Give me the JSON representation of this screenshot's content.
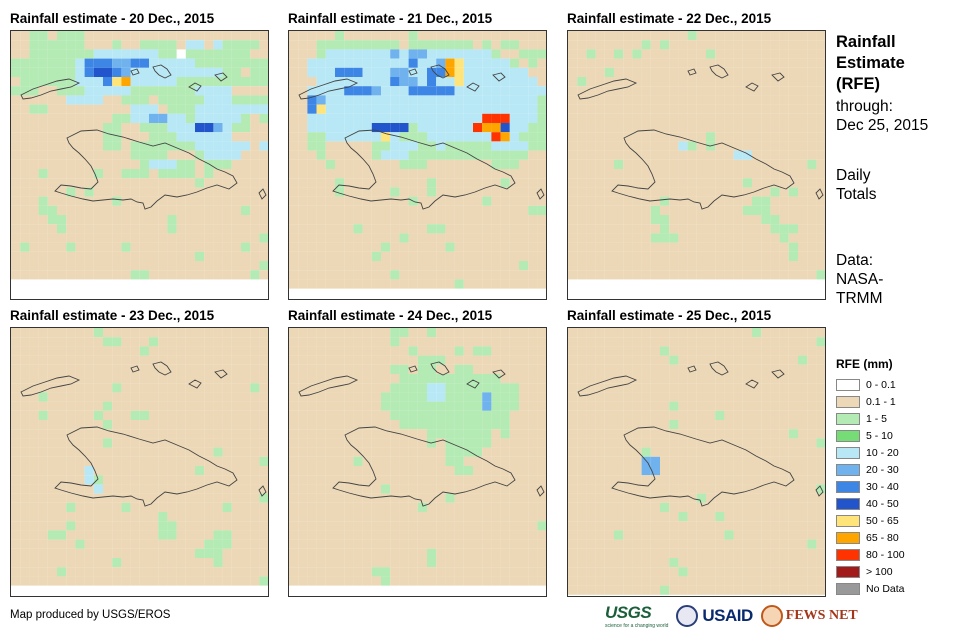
{
  "panels": [
    {
      "title": "Rainfall estimate - 20 Dec., 2015",
      "day": "20"
    },
    {
      "title": "Rainfall estimate - 21 Dec., 2015",
      "day": "21"
    },
    {
      "title": "Rainfall estimate - 22 Dec., 2015",
      "day": "22"
    },
    {
      "title": "Rainfall estimate - 23 Dec., 2015",
      "day": "23"
    },
    {
      "title": "Rainfall estimate - 24 Dec., 2015",
      "day": "24"
    },
    {
      "title": "Rainfall estimate - 25 Dec., 2015",
      "day": "25"
    }
  ],
  "sidebar": {
    "title_line1": "Rainfall",
    "title_line2": "Estimate",
    "title_line3": "(RFE)",
    "through_label": "through:",
    "through_date": "Dec 25, 2015",
    "totals_line1": "Daily",
    "totals_line2": "Totals",
    "data_line1": "Data:",
    "data_line2": "NASA-",
    "data_line3": "TRMM"
  },
  "legend": {
    "title": "RFE (mm)",
    "items": [
      {
        "label": "0 - 0.1",
        "color": "#ffffff"
      },
      {
        "label": "0.1 - 1",
        "color": "#ecd8b6"
      },
      {
        "label": "1 - 5",
        "color": "#b4eab4"
      },
      {
        "label": "5 - 10",
        "color": "#76dc76"
      },
      {
        "label": "10 - 20",
        "color": "#b8e8f6"
      },
      {
        "label": "20 - 30",
        "color": "#6fb2ee"
      },
      {
        "label": "30 - 40",
        "color": "#3d86e6"
      },
      {
        "label": "40 - 50",
        "color": "#2255cc"
      },
      {
        "label": "50 - 65",
        "color": "#ffe47a"
      },
      {
        "label": "65 - 80",
        "color": "#ffa500"
      },
      {
        "label": "80 - 100",
        "color": "#ff3300"
      },
      {
        "label": "> 100",
        "color": "#a31a1a"
      },
      {
        "label": "No Data",
        "color": "#999999"
      }
    ]
  },
  "footer": {
    "credit": "Map produced by USGS/EROS",
    "logo_usgs": "USGS",
    "logo_usgs_tagline": "science for a changing world",
    "logo_usaid": "USAID",
    "logo_fews": "FEWS NET"
  },
  "rain_grids": {
    "20": [
      "..ll.lll......................",
      "..llllll...l..llll.bb.bllll..l",
      "..lllllllbbbbbbbllmlllllll....",
      "lllllllbMMMLLMMbbbbbllllllll.l",
      "lllllllbMDDMLbbbbbbbbbbll.llll",
      ".llllllbbbMYObbbbbllllllllll..",
      "lll..lllbbbbblllllllbbbb....l.",
      "......bbbb..lll.lllllbbbllll..",
      "..ll.........bbb.lllbbbbbbbb..",
      "...........llbbLLbblbbbbbl.l..",
      "..........ll..lllbbbDDLbll....",
      "..........ll...lllbbbbbb......",
      "..........ll.lllllllbbbbbb.bb.",
      ".............llll...lbbbb...l.",
      "..............lbbbll.lll......",
      "...l.....l..lll.llll.l........",
      "....................l.........",
      "......l.l.....................",
      "...l.......l..................",
      "...ll....................l....",
      "....ll...........l............",
      ".....l...........l...........l",
      "...........................l..",
      ".l....l.....l............l....",
      "....................l.........",
      "...........................l..",
      ".............ll...........l..."
    ],
    "21": [
      ".....l.......l................",
      "...lllllllll.lllllll.l.ll.....",
      "...lbbbbbbbLbLLbbbbbbbl..lll..",
      "..bbbbbbbbbbbMbbLOYbbbbbl.l...",
      "..bbbMMMbbbLLbbMMOYbbbbbbb....",
      "...bbbbbbbbMLLbMbbYbbbbbbbb...",
      "..bbbbMMMLbbbMMMMMbbbbbbbbbb..",
      "..MLbbbbbbbbbbbbbbbbbbbbbbbl..",
      "..MYbbbbbbbbbbbbbbbbbbbbbbbll.",
      "..bbbbbbbbbbbbbbbbbbbRRRbbbll.",
      "..bbbbbbbDDDDlbbbbbbROODbbll..",
      "..llbbbbbbYblllbbbbbbbROblll..",
      "..ll.....llbbbllblllllbbbbll..",
      "...l.....lbbblllllllllllll....",
      "....l.......lll.......lll.....",
      "..............................",
      ".....l.........l.......l......",
      ".....l.....l...l..............",
      ".............l.......l........",
      "..........................ll..",
      "..............................",
      ".......l.......ll.............",
      "............l.................",
      "..........l......l............",
      ".........l....................",
      ".........................l....",
      "...........l..................",
      "..................l..........."
    ],
    "22": [
      ".............l................",
      "........l.l...................",
      "..l..l.l.......l..............",
      "..............................",
      "....l.........................",
      ".l............................",
      "..............................",
      "..............................",
      "..............................",
      "..............................",
      "..............................",
      "...............l..............",
      "............bl.l..............",
      "..................bb..........",
      ".....l....................l...",
      "..............................",
      "...................l..........",
      "......................l.l.....",
      "..........l.........ll........",
      ".........l.........lll........",
      ".........ll..........ll.......",
      "..........l...........lll.....",
      ".........lll...........l......",
      "........................l.....",
      "........................l.....",
      "..............................",
      "...........................l.."
    ],
    "23": [
      ".........l....................",
      "..........ll...l..............",
      "..............l...............",
      ".............................l",
      "..............................",
      "..............................",
      "...........l..............l...",
      "...l..........................",
      "..........l...................",
      "...l.....l...ll...............",
      "..........l...................",
      "..............................",
      "..........l...................",
      "......................l.......",
      "...........................l..",
      "........b...........l.........",
      "........bl....................",
      ".........b....................",
      "...........................l..",
      "......l.....l..........l......",
      "................l.............",
      "......l.........ll...........l",
      "....ll..........ll....ll......",
      ".......l.............lll......",
      "....................lll.......",
      "...........l..........l......l",
      ".....l........................",
      "...........................l.."
    ],
    "24": [
      "...........ll..l..............",
      "...........l..................",
      ".............l....l.ll........",
      "..............lll.............",
      "...........ll.ll..ll..........",
      "............lllllllllll.......",
      "...........llllbbllllllll.....",
      "..........lllllbbllllLlll.....",
      "..........lllllllllllLlll.....",
      "...........lllllllllllll......",
      "............llllllllllll......",
      "...............lllllll.l......",
      "...............l.lllll........",
      ".................llll.........",
      ".......l.........ll...........",
      "..................ll..........",
      "..............................",
      "..........l...................",
      ".................l............",
      "..............l...............",
      "..............................",
      "...........................l..",
      "..............................",
      "..............................",
      "...............l..............",
      "...............l..............",
      ".........ll...................",
      "..........l..................."
    ],
    "25": [
      "....................l.........",
      "...........................l..",
      "..........l...................",
      "...........l.............l....",
      "..............................",
      ".............................l",
      "..............................",
      "..............................",
      "...........l..................",
      "................l.............",
      "...........l..................",
      "........................l.....",
      "...........................l..",
      "........l.....................",
      "........LL....................",
      "........LL....................",
      "..............................",
      "...........................l..",
      "..............l...............",
      "..........l...................",
      "............l...l.............",
      "..............................",
      ".....l...........l............",
      "..........................l...",
      "..............................",
      "...........l..................",
      "............l.................",
      "..............................",
      "..........l..................."
    ]
  }
}
